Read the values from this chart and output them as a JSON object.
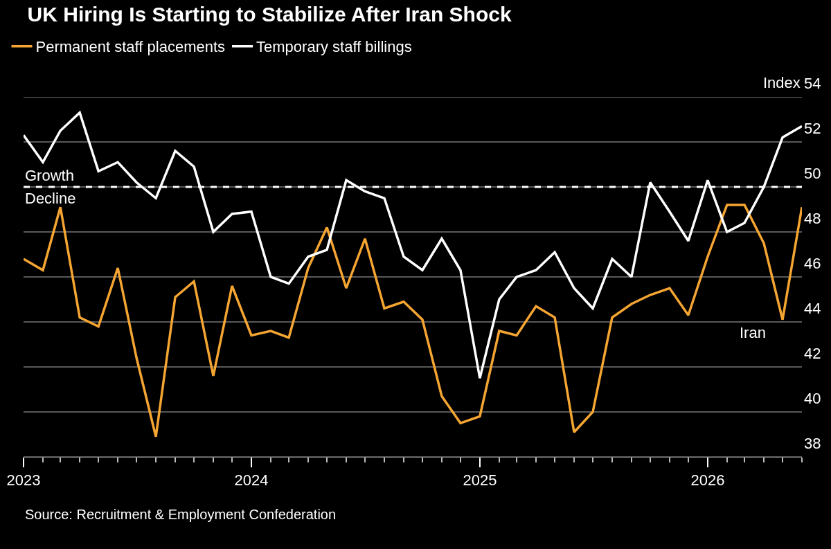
{
  "chart_data": {
    "type": "line",
    "title": "UK Hiring Is Starting to Stabilize After Iran Shock",
    "ylabel": "Index",
    "x": [
      "2023-01",
      "2023-02",
      "2023-03",
      "2023-04",
      "2023-05",
      "2023-06",
      "2023-07",
      "2023-08",
      "2023-09",
      "2023-10",
      "2023-11",
      "2023-12",
      "2024-01",
      "2024-02",
      "2024-03",
      "2024-04",
      "2024-05",
      "2024-06",
      "2024-07",
      "2024-08",
      "2024-09",
      "2024-10",
      "2024-11",
      "2024-12",
      "2025-01",
      "2025-02",
      "2025-03",
      "2025-04",
      "2025-05",
      "2025-06",
      "2025-07",
      "2025-08",
      "2025-09",
      "2025-10",
      "2025-11",
      "2025-12",
      "2026-01",
      "2026-02",
      "2026-03",
      "2026-04",
      "2026-05",
      "2026-06"
    ],
    "series": [
      {
        "name": "Permanent staff placements",
        "color": "#f5a532",
        "values": [
          46.8,
          46.3,
          49.1,
          44.2,
          43.8,
          46.4,
          42.4,
          38.9,
          45.1,
          45.8,
          41.6,
          45.6,
          43.4,
          43.6,
          43.3,
          46.4,
          48.2,
          45.5,
          47.7,
          44.6,
          44.9,
          44.1,
          40.7,
          39.5,
          39.8,
          43.6,
          43.4,
          44.7,
          44.2,
          39.1,
          40.0,
          44.2,
          44.8,
          45.2,
          45.5,
          44.3,
          46.9,
          49.2,
          49.2,
          47.5,
          44.1,
          49.1
        ]
      },
      {
        "name": "Temporary staff billings",
        "color": "#ffffff",
        "values": [
          52.3,
          51.1,
          52.5,
          53.3,
          50.7,
          51.1,
          50.2,
          49.5,
          51.6,
          50.9,
          48.0,
          48.8,
          48.9,
          46.0,
          45.7,
          46.9,
          47.2,
          50.3,
          49.8,
          49.5,
          46.9,
          46.3,
          47.7,
          46.3,
          41.5,
          45.0,
          46.0,
          46.3,
          47.1,
          45.5,
          44.6,
          46.8,
          46.0,
          50.2,
          48.9,
          47.6,
          50.3,
          48.0,
          48.4,
          50.0,
          52.2,
          52.7
        ]
      }
    ],
    "xlim": [
      "2023-01",
      "2026-06"
    ],
    "xticks": [
      {
        "value": "2023-01",
        "label": "2023"
      },
      {
        "value": "2024-01",
        "label": "2024"
      },
      {
        "value": "2025-01",
        "label": "2025"
      },
      {
        "value": "2026-01",
        "label": "2026"
      }
    ],
    "ylim": [
      38,
      54
    ],
    "yticks": [
      38,
      40,
      42,
      44,
      46,
      48,
      50,
      52,
      54
    ],
    "ref_lines": [
      {
        "axis": "y",
        "value": 50,
        "label": "Growth",
        "color": "#ffffff",
        "line_style": "dashed"
      }
    ],
    "annotations": [
      {
        "text": "Decline",
        "x": "2023-01",
        "y": 50
      },
      {
        "text": "Iran",
        "x": "2026-05",
        "y": 44.1
      },
      "Source: Recruitment & Employment Confederation"
    ],
    "grid": "y",
    "legend": "top left",
    "marker": "none",
    "line_style": "solid"
  }
}
